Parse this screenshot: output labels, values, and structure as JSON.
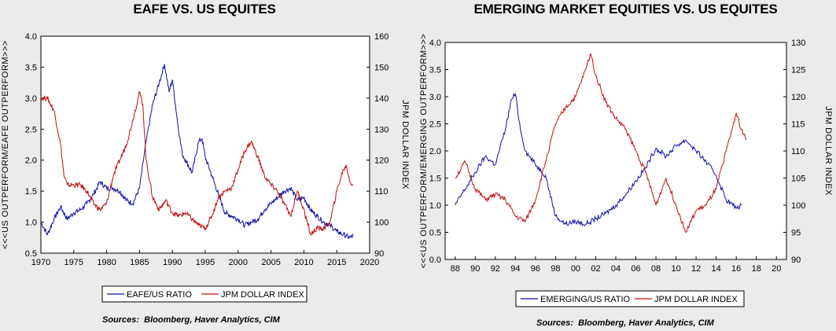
{
  "chart_data": [
    {
      "type": "line",
      "title": "EAFE VS. US EQUITES",
      "ylabel": "<<<US OUTPERFORM/EAFE OUTPERFORM>>>",
      "y2label": "JPM DOLLAR INDEX",
      "xlim": [
        1970,
        2020
      ],
      "xticks": [
        "1970",
        "1975",
        "1980",
        "1985",
        "1990",
        "1995",
        "2000",
        "2005",
        "2010",
        "2015",
        "2020"
      ],
      "ylim": [
        0.5,
        4.0
      ],
      "yticks": [
        "0.5",
        "1.0",
        "1.5",
        "2.0",
        "2.5",
        "3.0",
        "3.5",
        "4.0"
      ],
      "y2lim": [
        90,
        160
      ],
      "y2ticks": [
        "90",
        "100",
        "110",
        "120",
        "130",
        "140",
        "150",
        "160"
      ],
      "legend_position": "bottom",
      "source": "Sources:  Bloomberg, Haver Analytics, CIM",
      "series": [
        {
          "name": "EAFE/US RATIO",
          "color": "#1010a8",
          "axis": "left",
          "points": [
            [
              1970,
              1.0
            ],
            [
              1971,
              0.8
            ],
            [
              1972,
              1.05
            ],
            [
              1973,
              1.25
            ],
            [
              1974,
              1.05
            ],
            [
              1975,
              1.15
            ],
            [
              1976,
              1.2
            ],
            [
              1977,
              1.3
            ],
            [
              1978,
              1.45
            ],
            [
              1979,
              1.65
            ],
            [
              1980,
              1.55
            ],
            [
              1981,
              1.55
            ],
            [
              1982,
              1.5
            ],
            [
              1983,
              1.35
            ],
            [
              1984,
              1.3
            ],
            [
              1985,
              1.55
            ],
            [
              1986,
              2.3
            ],
            [
              1987,
              2.9
            ],
            [
              1988,
              3.25
            ],
            [
              1988.8,
              3.55
            ],
            [
              1989.5,
              3.1
            ],
            [
              1990,
              3.3
            ],
            [
              1990.8,
              2.6
            ],
            [
              1991.5,
              2.1
            ],
            [
              1992,
              2.0
            ],
            [
              1993,
              1.8
            ],
            [
              1994,
              2.3
            ],
            [
              1994.5,
              2.35
            ],
            [
              1995,
              2.05
            ],
            [
              1996,
              1.75
            ],
            [
              1997,
              1.45
            ],
            [
              1998,
              1.15
            ],
            [
              1999,
              1.1
            ],
            [
              2000,
              1.05
            ],
            [
              2001,
              0.95
            ],
            [
              2002,
              1.0
            ],
            [
              2003,
              1.05
            ],
            [
              2004,
              1.2
            ],
            [
              2005,
              1.3
            ],
            [
              2006,
              1.4
            ],
            [
              2007,
              1.5
            ],
            [
              2008,
              1.55
            ],
            [
              2009,
              1.35
            ],
            [
              2010,
              1.4
            ],
            [
              2011,
              1.2
            ],
            [
              2012,
              1.1
            ],
            [
              2013,
              1.0
            ],
            [
              2014,
              0.95
            ],
            [
              2015,
              0.85
            ],
            [
              2016,
              0.8
            ],
            [
              2017,
              0.75
            ],
            [
              2017.5,
              0.78
            ]
          ]
        },
        {
          "name": "JPM DOLLAR INDEX",
          "color": "#c01010",
          "axis": "right",
          "points": [
            [
              1970,
              140
            ],
            [
              1971,
              140
            ],
            [
              1972,
              136
            ],
            [
              1973,
              125
            ],
            [
              1973.5,
              115
            ],
            [
              1974,
              112
            ],
            [
              1975,
              112
            ],
            [
              1976,
              112
            ],
            [
              1977,
              110
            ],
            [
              1978,
              106
            ],
            [
              1979,
              104
            ],
            [
              1980,
              106
            ],
            [
              1981,
              115
            ],
            [
              1982,
              120
            ],
            [
              1983,
              125
            ],
            [
              1984,
              133
            ],
            [
              1985,
              142
            ],
            [
              1985.5,
              138
            ],
            [
              1986,
              120
            ],
            [
              1987,
              108
            ],
            [
              1988,
              104
            ],
            [
              1989,
              107
            ],
            [
              1990,
              103
            ],
            [
              1991,
              102
            ],
            [
              1992,
              103
            ],
            [
              1993,
              101
            ],
            [
              1994,
              99
            ],
            [
              1995,
              98
            ],
            [
              1996,
              102
            ],
            [
              1997,
              108
            ],
            [
              1998,
              110
            ],
            [
              1999,
              111
            ],
            [
              2000,
              117
            ],
            [
              2001,
              123
            ],
            [
              2002,
              126
            ],
            [
              2003,
              121
            ],
            [
              2004,
              115
            ],
            [
              2005,
              112
            ],
            [
              2006,
              110
            ],
            [
              2007,
              106
            ],
            [
              2008,
              102
            ],
            [
              2009,
              110
            ],
            [
              2010,
              104
            ],
            [
              2011,
              96
            ],
            [
              2012,
              98
            ],
            [
              2013,
              98
            ],
            [
              2014,
              100
            ],
            [
              2015,
              110
            ],
            [
              2016,
              117
            ],
            [
              2016.5,
              118
            ],
            [
              2017,
              113
            ],
            [
              2017.5,
              112
            ]
          ]
        }
      ]
    },
    {
      "type": "line",
      "title": "EMERGING MARKET EQUITIES VS. US EQUITES",
      "ylabel": "<<<US OUTPERFORM/EMERGING OUTPERFORM>>>",
      "y2label": "JPM DOLLAR INDEX",
      "xlim": [
        1987,
        2021
      ],
      "xticks": [
        "88",
        "90",
        "92",
        "94",
        "96",
        "98",
        "00",
        "02",
        "04",
        "06",
        "08",
        "10",
        "12",
        "14",
        "16",
        "18",
        "20"
      ],
      "ylim": [
        0.0,
        4.0
      ],
      "yticks": [
        "0.0",
        "0.5",
        "1.0",
        "1.5",
        "2.0",
        "2.5",
        "3.0",
        "3.5",
        "4.0"
      ],
      "y2lim": [
        90,
        130
      ],
      "y2ticks": [
        "90",
        "95",
        "100",
        "105",
        "110",
        "115",
        "120",
        "125",
        "130"
      ],
      "legend_position": "bottom",
      "source": "Sources:  Bloomberg, Haver Analytics, CIM",
      "series": [
        {
          "name": "EMERGING/US RATIO",
          "color": "#1010a8",
          "axis": "left",
          "points": [
            [
              1988,
              1.0
            ],
            [
              1989,
              1.3
            ],
            [
              1990,
              1.6
            ],
            [
              1991,
              1.9
            ],
            [
              1992,
              1.75
            ],
            [
              1993,
              2.4
            ],
            [
              1993.6,
              2.95
            ],
            [
              1994,
              3.05
            ],
            [
              1994.5,
              2.4
            ],
            [
              1995,
              2.0
            ],
            [
              1996,
              1.75
            ],
            [
              1997,
              1.55
            ],
            [
              1998,
              0.8
            ],
            [
              1999,
              0.65
            ],
            [
              2000,
              0.7
            ],
            [
              2001,
              0.65
            ],
            [
              2002,
              0.75
            ],
            [
              2003,
              0.85
            ],
            [
              2004,
              1.0
            ],
            [
              2005,
              1.2
            ],
            [
              2006,
              1.45
            ],
            [
              2007,
              1.7
            ],
            [
              2008,
              2.05
            ],
            [
              2009,
              1.9
            ],
            [
              2010,
              2.1
            ],
            [
              2011,
              2.2
            ],
            [
              2012,
              2.0
            ],
            [
              2013,
              1.8
            ],
            [
              2014,
              1.55
            ],
            [
              2015,
              1.1
            ],
            [
              2016,
              0.95
            ],
            [
              2016.5,
              1.0
            ]
          ]
        },
        {
          "name": "JPM DOLLAR INDEX",
          "color": "#c01010",
          "axis": "right",
          "points": [
            [
              1988,
              105
            ],
            [
              1989,
              108
            ],
            [
              1990,
              103
            ],
            [
              1991,
              101
            ],
            [
              1992,
              102
            ],
            [
              1993,
              101
            ],
            [
              1994,
              98
            ],
            [
              1995,
              97
            ],
            [
              1996,
              101
            ],
            [
              1997,
              108
            ],
            [
              1998,
              115
            ],
            [
              1999,
              118
            ],
            [
              2000,
              120
            ],
            [
              2001,
              125
            ],
            [
              2001.5,
              128
            ],
            [
              2002,
              124
            ],
            [
              2003,
              119
            ],
            [
              2004,
              116
            ],
            [
              2005,
              114
            ],
            [
              2006,
              110
            ],
            [
              2007,
              106
            ],
            [
              2008,
              100
            ],
            [
              2009,
              105
            ],
            [
              2010,
              100
            ],
            [
              2011,
              95
            ],
            [
              2012,
              99
            ],
            [
              2013,
              100
            ],
            [
              2014,
              103
            ],
            [
              2015,
              110
            ],
            [
              2016,
              117
            ],
            [
              2016.5,
              114
            ],
            [
              2017,
              112
            ]
          ]
        }
      ]
    }
  ]
}
